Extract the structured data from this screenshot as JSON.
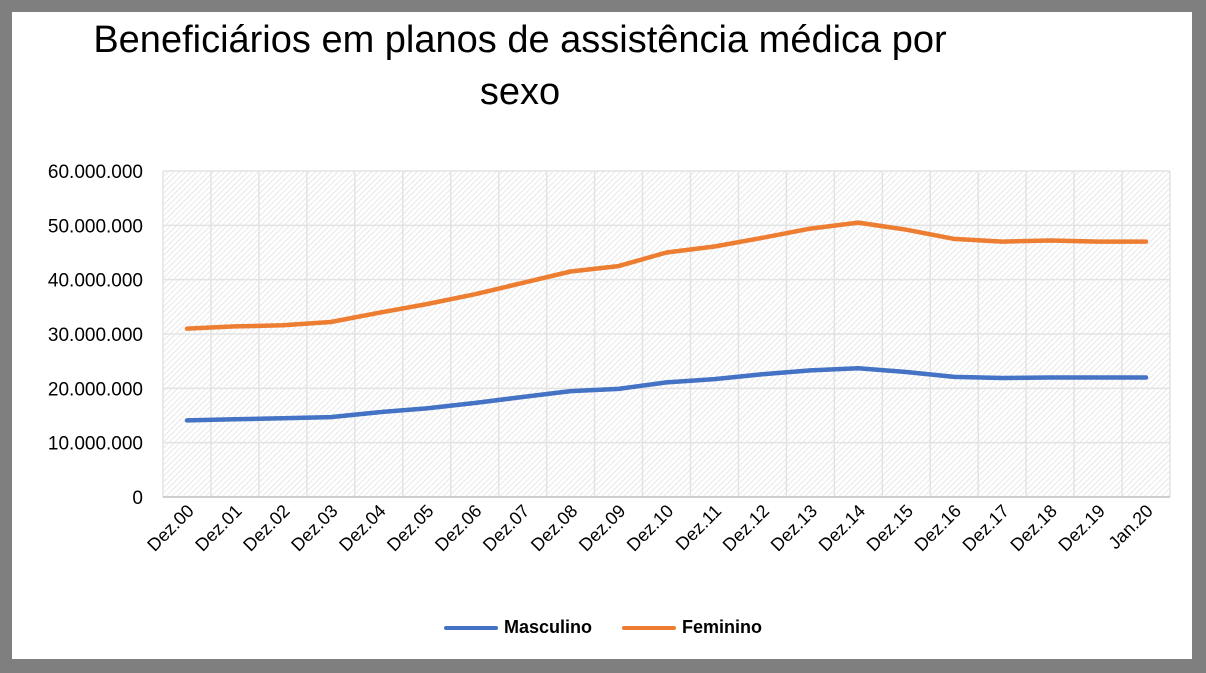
{
  "chart_data": {
    "type": "line",
    "title_lines": [
      "Beneficiários em planos de assistência médica por",
      "sexo"
    ],
    "xlabel": "",
    "ylabel": "",
    "ylim": [
      0,
      60000000
    ],
    "yticks": [
      "0",
      "10.000.000",
      "20.000.000",
      "30.000.000",
      "40.000.000",
      "50.000.000",
      "60.000.000"
    ],
    "grid": true,
    "legend_position": "bottom",
    "categories": [
      "Dez.00",
      "Dez.01",
      "Dez.02",
      "Dez.03",
      "Dez.04",
      "Dez.05",
      "Dez.06",
      "Dez.07",
      "Dez.08",
      "Dez.09",
      "Dez.10",
      "Dez.11",
      "Dez.12",
      "Dez.13",
      "Dez.14",
      "Dez.15",
      "Dez.16",
      "Dez.17",
      "Dez.18",
      "Dez.19",
      "Jan.20"
    ],
    "series": [
      {
        "name": "Masculino",
        "color": "#4472c4",
        "values": [
          14100000,
          14300000,
          14500000,
          14700000,
          15600000,
          16300000,
          17300000,
          18400000,
          19500000,
          19900000,
          21100000,
          21700000,
          22600000,
          23300000,
          23700000,
          23000000,
          22100000,
          21900000,
          22000000,
          22000000,
          22000000
        ]
      },
      {
        "name": "Feminino",
        "color": "#ed7d31",
        "values": [
          31000000,
          31400000,
          31600000,
          32200000,
          33900000,
          35500000,
          37300000,
          39400000,
          41500000,
          42500000,
          45000000,
          46100000,
          47700000,
          49400000,
          50500000,
          49200000,
          47500000,
          47000000,
          47200000,
          47000000,
          47000000
        ]
      }
    ]
  }
}
